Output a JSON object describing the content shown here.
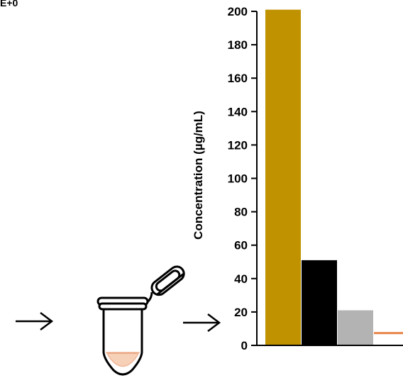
{
  "corner_label": "E+0",
  "icons": {
    "arrow_left": "right-arrow-icon",
    "tube": "microcentrifuge-tube-icon",
    "arrow_right": "right-arrow-icon"
  },
  "colors": {
    "tube_fill": "#f7d0b8",
    "tube_stroke": "#000000",
    "axis": "#000000"
  },
  "chart_data": {
    "type": "bar",
    "title": "",
    "xlabel": "",
    "ylabel": "Concentration (µg/mL)",
    "ylim": [
      0,
      200
    ],
    "yticks": [
      0,
      20,
      40,
      60,
      80,
      100,
      120,
      140,
      160,
      180,
      200
    ],
    "grid": false,
    "categories": [
      "",
      "",
      "",
      ""
    ],
    "values": [
      201,
      51,
      21,
      8
    ],
    "colors": [
      "#c09200",
      "#000000",
      "#b3b3b3",
      "#e8854a"
    ]
  }
}
